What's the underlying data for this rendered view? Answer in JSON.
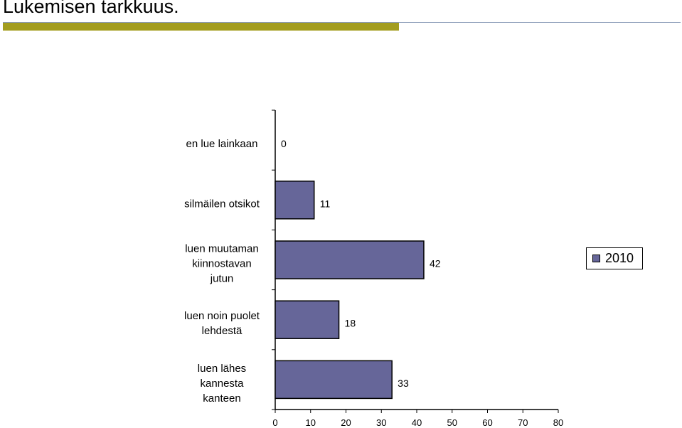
{
  "slide": {
    "title": "Lukemisen tarkkuus.",
    "bar_color": "#a39d1e",
    "line_color": "#8a9bb8"
  },
  "chart_data": {
    "type": "bar",
    "orientation": "horizontal",
    "categories": [
      [
        "en lue lainkaan"
      ],
      [
        "silmäilen otsikot"
      ],
      [
        "luen muutaman",
        "kiinnostavan",
        "jutun"
      ],
      [
        "luen noin puolet",
        "lehdestä"
      ],
      [
        "luen lähes",
        "kannesta",
        "kanteen"
      ]
    ],
    "series": [
      {
        "name": "2010",
        "values": [
          0,
          11,
          42,
          18,
          33
        ],
        "color": "#666699"
      }
    ],
    "xlim": [
      0,
      80
    ],
    "xticks": [
      0,
      10,
      20,
      30,
      40,
      50,
      60,
      70,
      80
    ],
    "grid": false,
    "legend_position": "right"
  }
}
